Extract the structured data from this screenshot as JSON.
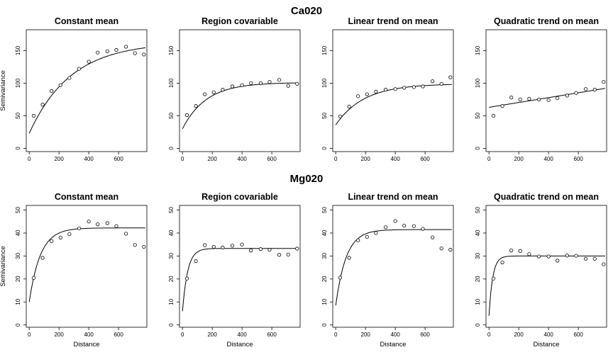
{
  "chart_data": [
    {
      "row_title": "Ca020",
      "type": "scatter",
      "title": "Constant mean",
      "xlabel": "",
      "ylabel": "Semivariance",
      "xlim": [
        -20,
        790
      ],
      "ylim": [
        -5,
        182
      ],
      "xticks": [
        0,
        200,
        400,
        600
      ],
      "yticks": [
        0,
        50,
        100,
        150
      ],
      "points": {
        "x": [
          30,
          90,
          150,
          210,
          270,
          335,
          400,
          460,
          525,
          585,
          650,
          710,
          770
        ],
        "y": [
          50,
          67,
          88,
          97,
          108,
          122,
          133,
          147,
          149,
          151,
          156,
          146,
          144
        ]
      },
      "model": {
        "nugget": 23,
        "sill": 140,
        "range": 280,
        "xmax": 780
      }
    },
    {
      "row_title": "Ca020",
      "type": "scatter",
      "title": "Region covariable",
      "xlabel": "",
      "ylabel": "",
      "xlim": [
        -20,
        790
      ],
      "ylim": [
        -5,
        182
      ],
      "xticks": [
        0,
        200,
        400,
        600
      ],
      "yticks": [
        0,
        50,
        100,
        150
      ],
      "points": {
        "x": [
          30,
          90,
          150,
          210,
          270,
          335,
          400,
          460,
          525,
          585,
          650,
          710,
          770
        ],
        "y": [
          51,
          65,
          83,
          86,
          90,
          95,
          97,
          100,
          100,
          102,
          105,
          96,
          99
        ]
      },
      "model": {
        "nugget": 30,
        "sill": 71,
        "range": 160,
        "xmax": 780
      }
    },
    {
      "row_title": "Ca020",
      "type": "scatter",
      "title": "Linear trend on mean",
      "xlabel": "",
      "ylabel": "",
      "xlim": [
        -20,
        790
      ],
      "ylim": [
        -5,
        182
      ],
      "xticks": [
        0,
        200,
        400,
        600
      ],
      "yticks": [
        0,
        50,
        100,
        150
      ],
      "points": {
        "x": [
          30,
          90,
          150,
          210,
          270,
          335,
          400,
          460,
          525,
          585,
          650,
          710,
          770
        ],
        "y": [
          49,
          64,
          80,
          83,
          87,
          90,
          91,
          93,
          94,
          95,
          103,
          99,
          109
        ]
      },
      "model": {
        "nugget": 36,
        "sill": 63,
        "range": 190,
        "xmax": 780
      }
    },
    {
      "row_title": "Ca020",
      "type": "scatter",
      "title": "Quadratic trend on mean",
      "xlabel": "",
      "ylabel": "",
      "xlim": [
        -20,
        790
      ],
      "ylim": [
        -5,
        182
      ],
      "xticks": [
        0,
        200,
        400,
        600
      ],
      "yticks": [
        0,
        50,
        100,
        150
      ],
      "points": {
        "x": [
          30,
          90,
          150,
          210,
          270,
          335,
          400,
          460,
          525,
          585,
          650,
          710,
          770
        ],
        "y": [
          50,
          65,
          78,
          75,
          76,
          75,
          74,
          77,
          81,
          85,
          91,
          90,
          102
        ]
      },
      "model": {
        "kind": "linear",
        "x0": 0,
        "y0": 63,
        "x1": 780,
        "y1": 92
      }
    },
    {
      "row_title": "Mg020",
      "type": "scatter",
      "title": "Constant mean",
      "xlabel": "Distance",
      "ylabel": "Semivariance",
      "xlim": [
        -20,
        790
      ],
      "ylim": [
        -1,
        52
      ],
      "xticks": [
        0,
        200,
        400,
        600
      ],
      "yticks": [
        0,
        10,
        20,
        30,
        40,
        50
      ],
      "points": {
        "x": [
          30,
          90,
          150,
          210,
          270,
          335,
          400,
          460,
          525,
          585,
          650,
          710,
          770
        ],
        "y": [
          20.5,
          29.2,
          36.5,
          38.0,
          39.5,
          42.0,
          45.0,
          43.8,
          44.3,
          43.0,
          39.7,
          34.8,
          34.0
        ]
      },
      "model": {
        "nugget": 10,
        "sill": 32.2,
        "range": 75,
        "xmax": 780
      }
    },
    {
      "row_title": "Mg020",
      "type": "scatter",
      "title": "Region covariable",
      "xlabel": "Distance",
      "ylabel": "",
      "xlim": [
        -20,
        790
      ],
      "ylim": [
        -1,
        52
      ],
      "xticks": [
        0,
        200,
        400,
        600
      ],
      "yticks": [
        0,
        10,
        20,
        30,
        40,
        50
      ],
      "points": {
        "x": [
          30,
          90,
          150,
          210,
          270,
          335,
          400,
          460,
          525,
          585,
          650,
          710,
          770
        ],
        "y": [
          20.2,
          27.8,
          34.7,
          34.0,
          33.7,
          34.5,
          35.0,
          32.4,
          33.0,
          32.7,
          30.5,
          30.6,
          33.2
        ]
      },
      "model": {
        "nugget": 6,
        "sill": 27.3,
        "range": 35,
        "xmax": 780
      }
    },
    {
      "row_title": "Mg020",
      "type": "scatter",
      "title": "Linear trend on mean",
      "xlabel": "Distance",
      "ylabel": "",
      "xlim": [
        -20,
        790
      ],
      "ylim": [
        -1,
        52
      ],
      "xticks": [
        0,
        200,
        400,
        600
      ],
      "yticks": [
        0,
        10,
        20,
        30,
        40,
        50
      ],
      "points": {
        "x": [
          30,
          90,
          150,
          210,
          270,
          335,
          400,
          460,
          525,
          585,
          650,
          710,
          770
        ],
        "y": [
          20.6,
          29.2,
          36.8,
          38.3,
          40.0,
          42.5,
          45.2,
          43.2,
          43.0,
          41.8,
          38.1,
          33.3,
          32.7
        ]
      },
      "model": {
        "nugget": 8.5,
        "sill": 33,
        "range": 70,
        "xmax": 780
      }
    },
    {
      "row_title": "Mg020",
      "type": "scatter",
      "title": "Quadratic trend on mean",
      "xlabel": "Distance",
      "ylabel": "",
      "xlim": [
        -20,
        790
      ],
      "ylim": [
        -1,
        52
      ],
      "xticks": [
        0,
        200,
        400,
        600
      ],
      "yticks": [
        0,
        10,
        20,
        30,
        40,
        50
      ],
      "points": {
        "x": [
          30,
          90,
          150,
          210,
          270,
          335,
          400,
          460,
          525,
          585,
          650,
          710,
          770
        ],
        "y": [
          20.2,
          27.2,
          32.4,
          32.2,
          30.8,
          29.8,
          29.8,
          28.0,
          30.2,
          30.1,
          28.8,
          28.8,
          26.4
        ]
      },
      "model": {
        "nugget": 4,
        "sill": 26,
        "range": 25,
        "xmax": 780
      }
    }
  ]
}
